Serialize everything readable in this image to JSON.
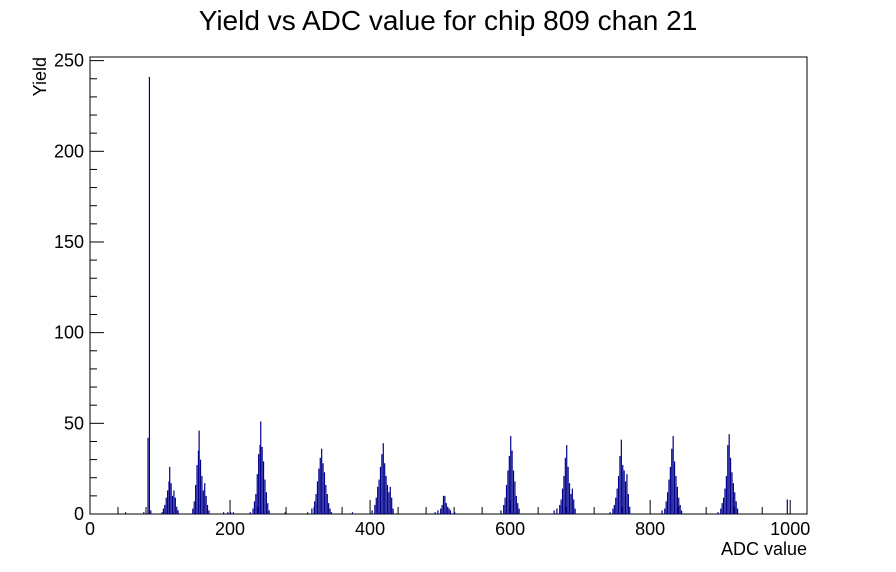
{
  "chart_data": {
    "type": "bar",
    "title": "Yield vs ADC value for chip 809 chan 21",
    "xlabel": "ADC value",
    "ylabel": "Yield",
    "xlim": [
      0,
      1024
    ],
    "ylim": [
      0,
      252
    ],
    "grid": false,
    "legend": "none",
    "bin_width": 1,
    "x_ticks": [
      0,
      200,
      400,
      600,
      800,
      1000
    ],
    "y_ticks": [
      0,
      50,
      100,
      150,
      200,
      250
    ],
    "series": [
      {
        "color": "#00008b",
        "points": [
          [
            50,
            1
          ],
          [
            76,
            1
          ],
          [
            82,
            42
          ],
          [
            84,
            241
          ],
          [
            86,
            2
          ],
          [
            102,
            1
          ],
          [
            104,
            3
          ],
          [
            106,
            5
          ],
          [
            108,
            9
          ],
          [
            110,
            13
          ],
          [
            112,
            18
          ],
          [
            113,
            26
          ],
          [
            115,
            17
          ],
          [
            117,
            10
          ],
          [
            119,
            13
          ],
          [
            121,
            9
          ],
          [
            123,
            4
          ],
          [
            125,
            2
          ],
          [
            146,
            3
          ],
          [
            148,
            7
          ],
          [
            150,
            16
          ],
          [
            152,
            27
          ],
          [
            154,
            35
          ],
          [
            155,
            46
          ],
          [
            157,
            30
          ],
          [
            159,
            21
          ],
          [
            161,
            13
          ],
          [
            163,
            17
          ],
          [
            165,
            10
          ],
          [
            167,
            5
          ],
          [
            169,
            2
          ],
          [
            190,
            1
          ],
          [
            196,
            1
          ],
          [
            200,
            1
          ],
          [
            204,
            1
          ],
          [
            228,
            1
          ],
          [
            232,
            3
          ],
          [
            234,
            7
          ],
          [
            236,
            11
          ],
          [
            238,
            22
          ],
          [
            240,
            33
          ],
          [
            242,
            38
          ],
          [
            243,
            51
          ],
          [
            245,
            37
          ],
          [
            247,
            29
          ],
          [
            249,
            19
          ],
          [
            251,
            12
          ],
          [
            253,
            6
          ],
          [
            255,
            2
          ],
          [
            278,
            1
          ],
          [
            310,
            1
          ],
          [
            316,
            3
          ],
          [
            320,
            7
          ],
          [
            322,
            11
          ],
          [
            324,
            18
          ],
          [
            326,
            25
          ],
          [
            328,
            31
          ],
          [
            330,
            36
          ],
          [
            332,
            28
          ],
          [
            334,
            23
          ],
          [
            336,
            16
          ],
          [
            338,
            11
          ],
          [
            340,
            6
          ],
          [
            342,
            3
          ],
          [
            344,
            1
          ],
          [
            374,
            1
          ],
          [
            402,
            2
          ],
          [
            406,
            5
          ],
          [
            408,
            9
          ],
          [
            410,
            15
          ],
          [
            412,
            19
          ],
          [
            414,
            26
          ],
          [
            416,
            33
          ],
          [
            418,
            39
          ],
          [
            420,
            28
          ],
          [
            422,
            21
          ],
          [
            424,
            16
          ],
          [
            426,
            12
          ],
          [
            428,
            15
          ],
          [
            430,
            9
          ],
          [
            432,
            3
          ],
          [
            492,
            1
          ],
          [
            496,
            2
          ],
          [
            500,
            3
          ],
          [
            502,
            5
          ],
          [
            504,
            10
          ],
          [
            506,
            10
          ],
          [
            508,
            6
          ],
          [
            510,
            4
          ],
          [
            512,
            3
          ],
          [
            514,
            2
          ],
          [
            520,
            1
          ],
          [
            586,
            2
          ],
          [
            590,
            5
          ],
          [
            592,
            9
          ],
          [
            594,
            16
          ],
          [
            596,
            24
          ],
          [
            598,
            32
          ],
          [
            600,
            43
          ],
          [
            602,
            35
          ],
          [
            604,
            24
          ],
          [
            606,
            18
          ],
          [
            608,
            10
          ],
          [
            610,
            6
          ],
          [
            612,
            3
          ],
          [
            662,
            2
          ],
          [
            666,
            3
          ],
          [
            670,
            5
          ],
          [
            672,
            8
          ],
          [
            674,
            14
          ],
          [
            676,
            21
          ],
          [
            678,
            31
          ],
          [
            680,
            38
          ],
          [
            682,
            26
          ],
          [
            684,
            17
          ],
          [
            686,
            11
          ],
          [
            688,
            14
          ],
          [
            690,
            8
          ],
          [
            692,
            3
          ],
          [
            742,
            1
          ],
          [
            746,
            3
          ],
          [
            748,
            5
          ],
          [
            750,
            9
          ],
          [
            752,
            14
          ],
          [
            754,
            21
          ],
          [
            756,
            32
          ],
          [
            758,
            41
          ],
          [
            760,
            27
          ],
          [
            762,
            24
          ],
          [
            764,
            18
          ],
          [
            766,
            22
          ],
          [
            768,
            11
          ],
          [
            770,
            4
          ],
          [
            816,
            2
          ],
          [
            820,
            3
          ],
          [
            822,
            7
          ],
          [
            824,
            12
          ],
          [
            826,
            19
          ],
          [
            828,
            26
          ],
          [
            830,
            36
          ],
          [
            832,
            43
          ],
          [
            834,
            29
          ],
          [
            836,
            21
          ],
          [
            838,
            15
          ],
          [
            840,
            9
          ],
          [
            842,
            5
          ],
          [
            844,
            2
          ],
          [
            896,
            1
          ],
          [
            900,
            3
          ],
          [
            902,
            6
          ],
          [
            904,
            9
          ],
          [
            906,
            14
          ],
          [
            908,
            21
          ],
          [
            910,
            38
          ],
          [
            912,
            44
          ],
          [
            914,
            31
          ],
          [
            916,
            23
          ],
          [
            918,
            17
          ],
          [
            920,
            12
          ],
          [
            922,
            7
          ],
          [
            924,
            3
          ],
          [
            995,
            8
          ]
        ]
      }
    ]
  }
}
